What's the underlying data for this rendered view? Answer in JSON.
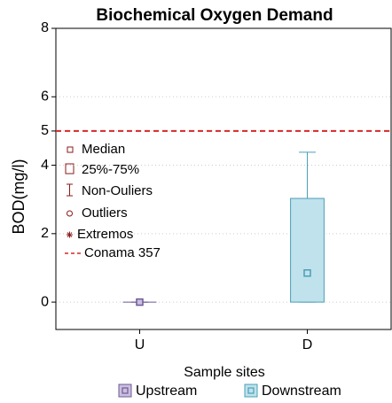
{
  "chart_data": {
    "type": "box",
    "title": "Biochemical Oxygen Demand",
    "xlabel": "Sample sites",
    "ylabel": "BOD(mg/l)",
    "categories": [
      "U",
      "D"
    ],
    "series": [
      {
        "name": "Upstream",
        "color": "#cbbfdf",
        "edge": "#6e5a96",
        "min": 0,
        "q1": 0,
        "median": 0,
        "q3": 0,
        "max": 0
      },
      {
        "name": "Downstream",
        "color": "#bfe2ec",
        "edge": "#4a9fb6",
        "min": 0,
        "q1": 0,
        "median": 0.85,
        "q3": 3.03,
        "max": 4.38
      }
    ],
    "legend_items": [
      "Median",
      "25%-75%",
      "Non-Ouliers",
      "Outliers",
      "Extremos"
    ],
    "reference_line": {
      "value": 5,
      "label": "Conama 357",
      "color": "#d62728"
    },
    "ylim": [
      -0.8,
      8
    ],
    "yticks": [
      0,
      2,
      4,
      5,
      6,
      8
    ],
    "grid": true
  }
}
